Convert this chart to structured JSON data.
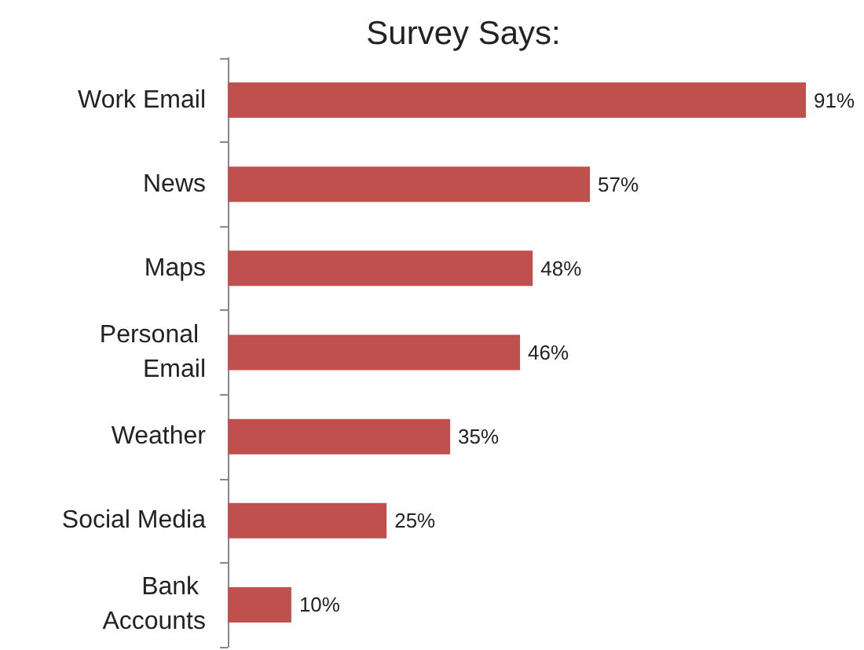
{
  "chart_data": {
    "type": "bar",
    "orientation": "horizontal",
    "title": "Survey Says:",
    "categories": [
      "Work Email",
      "News",
      "Maps",
      "Personal Email",
      "Weather",
      "Social Media",
      "Bank Accounts"
    ],
    "values": [
      91,
      57,
      48,
      46,
      35,
      25,
      10
    ],
    "value_labels": [
      "91%",
      "57%",
      "48%",
      "46%",
      "35%",
      "25%",
      "10%"
    ],
    "color": "#c0504d"
  }
}
